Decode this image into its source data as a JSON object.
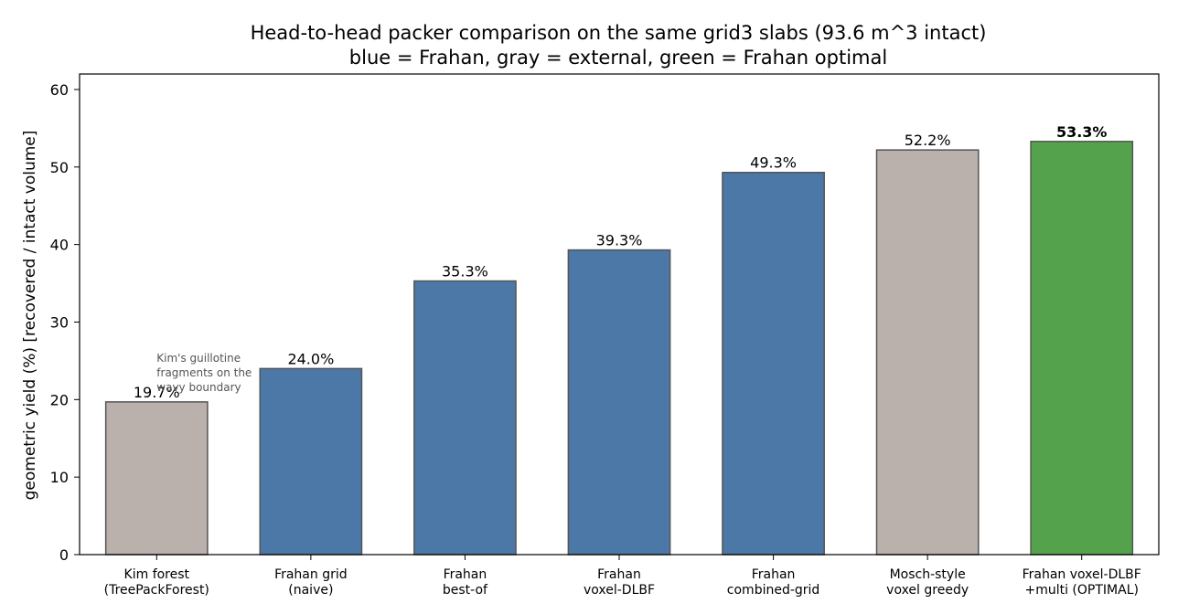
{
  "chart_data": {
    "type": "bar",
    "title": "Head-to-head packer comparison on the same grid3 slabs (93.6 m^3 intact)",
    "subtitle": "blue = Frahan, gray = external, green = Frahan optimal",
    "xlabel": "",
    "ylabel": "geometric yield (%)  [recovered / intact volume]",
    "ylim": [
      0,
      62
    ],
    "yticks": [
      0,
      10,
      20,
      30,
      40,
      50,
      60
    ],
    "grid": false,
    "categories": [
      [
        "Kim forest",
        "(TreePackForest)"
      ],
      [
        "Frahan grid",
        "(naive)"
      ],
      [
        "Frahan",
        "best-of"
      ],
      [
        "Frahan",
        "voxel-DLBF"
      ],
      [
        "Frahan",
        "combined-grid"
      ],
      [
        "Mosch-style",
        "voxel greedy"
      ],
      [
        "Frahan voxel-DLBF",
        "+multi (OPTIMAL)"
      ]
    ],
    "values": [
      19.7,
      24.0,
      35.3,
      39.3,
      49.3,
      52.2,
      53.3
    ],
    "value_labels": [
      "19.7%",
      "24.0%",
      "35.3%",
      "39.3%",
      "49.3%",
      "52.2%",
      "53.3%"
    ],
    "bold_labels": [
      false,
      false,
      false,
      false,
      false,
      false,
      true
    ],
    "groups": [
      "external",
      "frahan",
      "frahan",
      "frahan",
      "frahan",
      "external",
      "optimal"
    ],
    "colors": {
      "frahan": "#4c78a8",
      "external": "#bab0ac",
      "optimal": "#54a24b",
      "edge": "#555555"
    },
    "annotation": {
      "lines": [
        "Kim's guillotine",
        "fragments on the",
        "wavy boundary"
      ],
      "attached_to": 0
    }
  }
}
